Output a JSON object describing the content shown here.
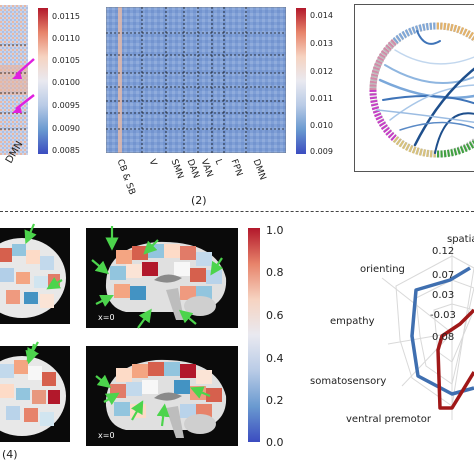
{
  "top": {
    "panel1": {
      "row_label": "DMN",
      "colorbar_ticks": [
        "0.0115",
        "0.0110",
        "0.0105",
        "0.0100",
        "0.0095",
        "0.0090",
        "0.0085"
      ]
    },
    "panel2": {
      "caption": "(2)",
      "x_labels": [
        "CB & SB",
        "V",
        "SMN",
        "DAN",
        "VAN",
        "L",
        "FPN",
        "DMN"
      ],
      "colorbar_ticks": [
        "0.014",
        "0.013",
        "0.012",
        "0.011",
        "0.010",
        "0.009"
      ]
    }
  },
  "bottom": {
    "caption": "(4)",
    "brain_labels": [
      "x=0",
      "x=0"
    ],
    "colorbar_ticks": [
      "1.0",
      "0.8",
      "0.6",
      "0.4",
      "0.2",
      "0.0"
    ],
    "radar": {
      "axis_labels": [
        "spatial",
        "orienting",
        "empathy",
        "somatosensory",
        "ventral premotor"
      ],
      "ring_labels": [
        "0.12",
        "0.07",
        "0.03",
        "-0.03",
        "0.08"
      ],
      "series_colors": {
        "blue": "#3f6fb0",
        "red": "#a01818"
      }
    }
  },
  "colors": {
    "arrow": "#4cd44c",
    "magenta_arrow": "#e020e0",
    "chord_dark": "#1e4f8c"
  }
}
